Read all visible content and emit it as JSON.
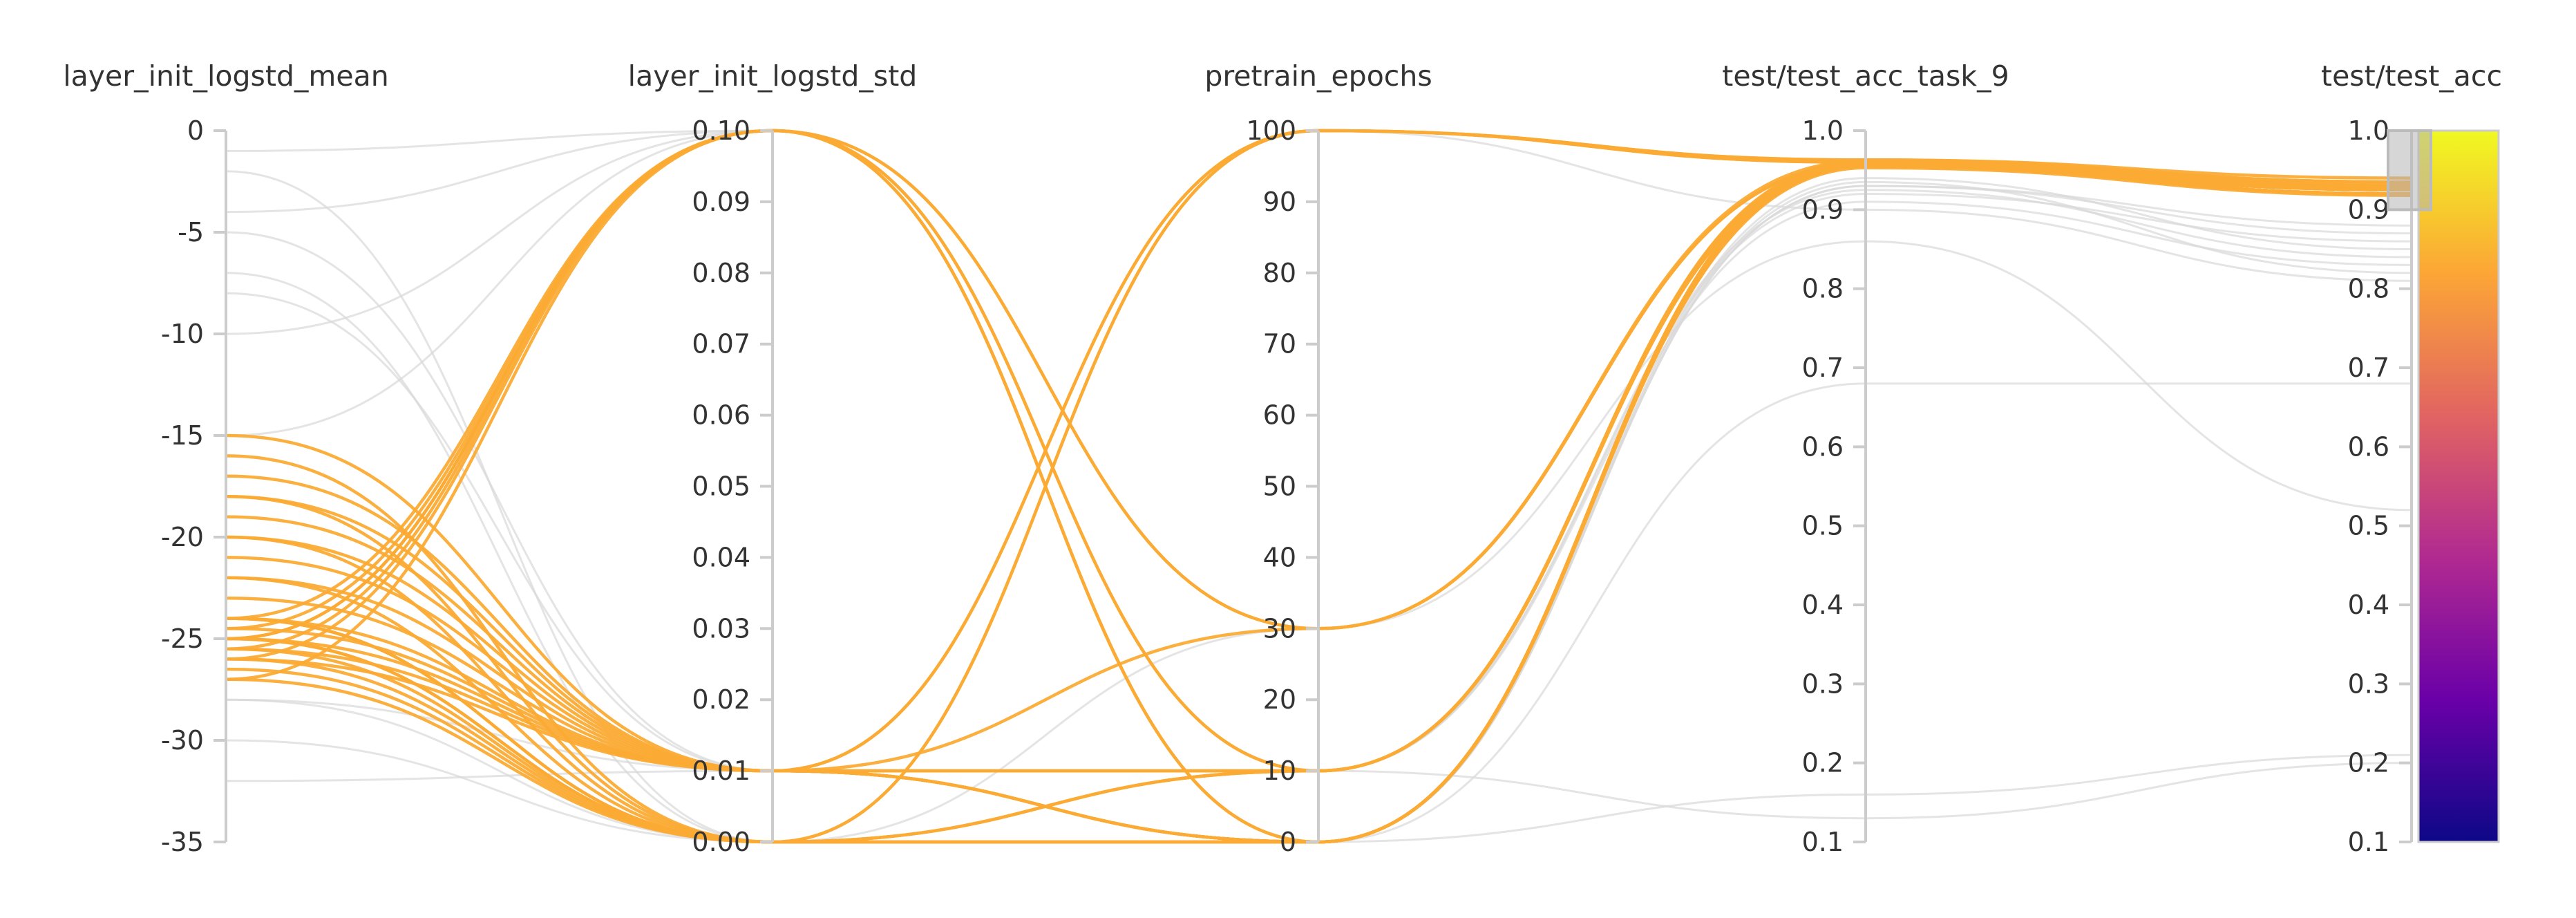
{
  "chart_data": {
    "type": "parallel_coordinates",
    "axes": [
      {
        "name": "layer_init_logstd_mean",
        "range": [
          -35,
          0
        ],
        "ticks": [
          0,
          -5,
          -10,
          -15,
          -20,
          -25,
          -30,
          -35
        ],
        "tick_labels": [
          "0",
          "-5",
          "-10",
          "-15",
          "-20",
          "-25",
          "-30",
          "-35"
        ]
      },
      {
        "name": "layer_init_logstd_std",
        "range": [
          0,
          0.1
        ],
        "ticks": [
          0.1,
          0.09,
          0.08,
          0.07,
          0.06,
          0.05,
          0.04,
          0.03,
          0.02,
          0.01,
          0
        ],
        "tick_labels": [
          "0.10",
          "0.09",
          "0.08",
          "0.07",
          "0.06",
          "0.05",
          "0.04",
          "0.03",
          "0.02",
          "0.01",
          "0.00"
        ]
      },
      {
        "name": "pretrain_epochs",
        "range": [
          0,
          100
        ],
        "ticks": [
          100,
          90,
          80,
          70,
          60,
          50,
          40,
          30,
          20,
          10,
          0
        ],
        "tick_labels": [
          "100",
          "90",
          "80",
          "70",
          "60",
          "50",
          "40",
          "30",
          "20",
          "10",
          "0"
        ]
      },
      {
        "name": "test/test_acc_task_9",
        "range": [
          0.1,
          1.0
        ],
        "ticks": [
          1.0,
          0.9,
          0.8,
          0.7,
          0.6,
          0.5,
          0.4,
          0.3,
          0.2,
          0.1
        ],
        "tick_labels": [
          "1.0",
          "0.9",
          "0.8",
          "0.7",
          "0.6",
          "0.5",
          "0.4",
          "0.3",
          "0.2",
          "0.1"
        ]
      },
      {
        "name": "test/test_acc",
        "range": [
          0.1,
          1.0
        ],
        "ticks": [
          1.0,
          0.9,
          0.8,
          0.7,
          0.6,
          0.5,
          0.4,
          0.3,
          0.2,
          0.1
        ],
        "tick_labels": [
          "1.0",
          "0.9",
          "0.8",
          "0.7",
          "0.6",
          "0.5",
          "0.4",
          "0.3",
          "0.2",
          "0.1"
        ]
      }
    ],
    "brush": {
      "axis": "test/test_acc",
      "range": [
        0.9,
        1.0
      ]
    },
    "color_scale": {
      "metric": "test/test_acc",
      "range": [
        0.1,
        1.0
      ],
      "colors": [
        "#0d0887",
        "#6a00a8",
        "#b12a90",
        "#e16462",
        "#fca636",
        "#f0f921"
      ]
    },
    "highlight_color": "#fbab34",
    "muted_color": "#d9d9d9",
    "highlighted_runs": [
      [
        -25,
        0.1,
        30,
        0.962,
        0.93
      ],
      [
        -24.5,
        0.1,
        30,
        0.958,
        0.925
      ],
      [
        -25,
        0.1,
        0,
        0.955,
        0.92
      ],
      [
        -24,
        0.1,
        0,
        0.953,
        0.918
      ],
      [
        -25.5,
        0.1,
        0,
        0.958,
        0.935
      ],
      [
        -26,
        0.1,
        10,
        0.962,
        0.93
      ],
      [
        -27,
        0.1,
        10,
        0.955,
        0.92
      ],
      [
        -15,
        0.01,
        100,
        0.963,
        0.935
      ],
      [
        -17,
        0.01,
        100,
        0.96,
        0.93
      ],
      [
        -18,
        0.01,
        30,
        0.958,
        0.928
      ],
      [
        -19,
        0.01,
        0,
        0.955,
        0.925
      ],
      [
        -20,
        0.01,
        10,
        0.96,
        0.93
      ],
      [
        -21,
        0.01,
        0,
        0.955,
        0.92
      ],
      [
        -22,
        0.01,
        0,
        0.962,
        0.935
      ],
      [
        -23,
        0.01,
        10,
        0.958,
        0.925
      ],
      [
        -24,
        0.01,
        0,
        0.96,
        0.93
      ],
      [
        -25,
        0.01,
        0,
        0.955,
        0.92
      ],
      [
        -26,
        0.01,
        0,
        0.962,
        0.935
      ],
      [
        -24.5,
        0.01,
        0,
        0.958,
        0.928
      ],
      [
        -25.5,
        0.01,
        10,
        0.96,
        0.93
      ],
      [
        -16,
        0.0,
        100,
        0.963,
        0.94
      ],
      [
        -18,
        0.0,
        100,
        0.96,
        0.935
      ],
      [
        -20,
        0.0,
        10,
        0.955,
        0.925
      ],
      [
        -22,
        0.0,
        0,
        0.96,
        0.93
      ],
      [
        -24,
        0.0,
        0,
        0.958,
        0.928
      ],
      [
        -25,
        0.0,
        0,
        0.962,
        0.932
      ],
      [
        -25.5,
        0.0,
        0,
        0.955,
        0.92
      ],
      [
        -26,
        0.0,
        10,
        0.96,
        0.93
      ],
      [
        -26.5,
        0.0,
        0,
        0.958,
        0.925
      ],
      [
        -27,
        0.0,
        0,
        0.955,
        0.92
      ],
      [
        -24,
        0.0,
        0,
        0.96,
        0.93
      ],
      [
        -25,
        0.0,
        10,
        0.958,
        0.926
      ]
    ],
    "other_runs": [
      [
        -1,
        0.1,
        0,
        0.93,
        0.88
      ],
      [
        -4,
        0.1,
        10,
        0.92,
        0.86
      ],
      [
        -5,
        0.01,
        0,
        0.93,
        0.87
      ],
      [
        -7,
        0.0,
        0,
        0.94,
        0.85
      ],
      [
        -8,
        0.01,
        10,
        0.925,
        0.84
      ],
      [
        -10,
        0.1,
        10,
        0.91,
        0.83
      ],
      [
        -15,
        0.1,
        0,
        0.935,
        0.82
      ],
      [
        -28,
        0.0,
        10,
        0.13,
        0.2
      ],
      [
        -32,
        0.01,
        0,
        0.16,
        0.21
      ],
      [
        -30,
        0.0,
        100,
        0.9,
        0.81
      ],
      [
        -28,
        0.01,
        0,
        0.68,
        0.68
      ],
      [
        -2,
        0.0,
        30,
        0.86,
        0.52
      ]
    ]
  }
}
